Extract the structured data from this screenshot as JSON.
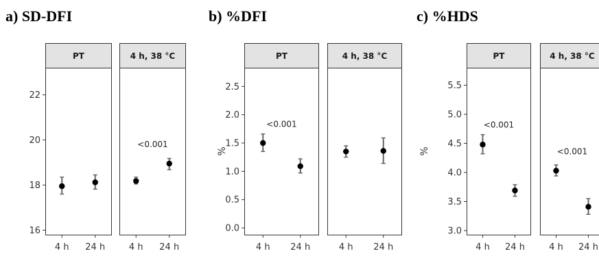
{
  "chart_data": [
    {
      "type": "scatter",
      "title": "a) SD-DFI",
      "ylabel": "",
      "ylim": [
        15.8,
        23.2
      ],
      "yticks": [
        16,
        18,
        20,
        22
      ],
      "yticklabels": [
        "16",
        "18",
        "20",
        "22"
      ],
      "categories": [
        "4 h",
        "24 h"
      ],
      "facets": [
        {
          "label": "PT",
          "points": [
            {
              "x": "4 h",
              "y": 17.95,
              "lo": 17.6,
              "hi": 18.35
            },
            {
              "x": "24 h",
              "y": 18.12,
              "lo": 17.82,
              "hi": 18.45
            }
          ],
          "annotation": null
        },
        {
          "label": "4 h, 38 °C",
          "points": [
            {
              "x": "4 h",
              "y": 18.18,
              "lo": 18.05,
              "hi": 18.35
            },
            {
              "x": "24 h",
              "y": 18.95,
              "lo": 18.68,
              "hi": 19.18
            }
          ],
          "annotation": {
            "text": "<0.001",
            "y": 19.8
          }
        }
      ]
    },
    {
      "type": "scatter",
      "title": "b) %DFI",
      "ylabel": "%",
      "ylim": [
        -0.12,
        2.83
      ],
      "yticks": [
        0.0,
        0.5,
        1.0,
        1.5,
        2.0,
        2.5
      ],
      "yticklabels": [
        "0.0",
        "0.5",
        "1.0",
        "1.5",
        "2.0",
        "2.5"
      ],
      "categories": [
        "4 h",
        "24 h"
      ],
      "facets": [
        {
          "label": "PT",
          "points": [
            {
              "x": "4 h",
              "y": 1.5,
              "lo": 1.35,
              "hi": 1.66
            },
            {
              "x": "24 h",
              "y": 1.09,
              "lo": 0.97,
              "hi": 1.22
            }
          ],
          "annotation": {
            "text": "<0.001",
            "y": 1.83
          }
        },
        {
          "label": "4 h, 38 °C",
          "points": [
            {
              "x": "4 h",
              "y": 1.35,
              "lo": 1.25,
              "hi": 1.45
            },
            {
              "x": "24 h",
              "y": 1.36,
              "lo": 1.14,
              "hi": 1.59
            }
          ],
          "annotation": null
        }
      ]
    },
    {
      "type": "scatter",
      "title": "c) %HDS",
      "ylabel": "%",
      "ylim": [
        2.93,
        5.8
      ],
      "yticks": [
        3.0,
        3.5,
        4.0,
        4.5,
        5.0,
        5.5
      ],
      "yticklabels": [
        "3.0",
        "3.5",
        "4.0",
        "4.5",
        "5.0",
        "5.5"
      ],
      "categories": [
        "4 h",
        "24 h"
      ],
      "facets": [
        {
          "label": "PT",
          "points": [
            {
              "x": "4 h",
              "y": 4.48,
              "lo": 4.32,
              "hi": 4.65
            },
            {
              "x": "24 h",
              "y": 3.69,
              "lo": 3.59,
              "hi": 3.79
            }
          ],
          "annotation": {
            "text": "<0.001",
            "y": 4.82
          }
        },
        {
          "label": "4 h, 38 °C",
          "points": [
            {
              "x": "4 h",
              "y": 4.03,
              "lo": 3.94,
              "hi": 4.13
            },
            {
              "x": "24 h",
              "y": 3.41,
              "lo": 3.28,
              "hi": 3.55
            }
          ],
          "annotation": {
            "text": "<0.001",
            "y": 4.36
          }
        }
      ]
    }
  ]
}
